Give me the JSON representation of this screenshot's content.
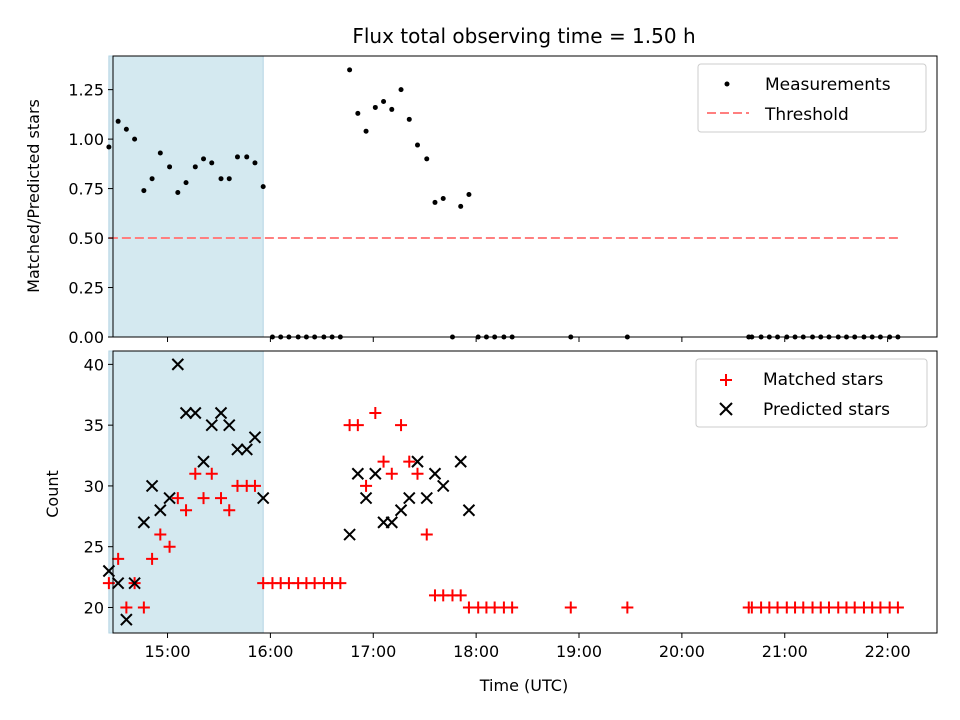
{
  "chart_data": [
    {
      "type": "scatter",
      "title": "Flux total observing time = 1.50 h",
      "xlabel": "",
      "ylabel": "Matched/Predicted stars",
      "ylim": [
        0,
        1.42
      ],
      "yticks": [
        "0.00",
        "0.25",
        "0.50",
        "0.75",
        "1.00",
        "1.25"
      ],
      "yticks_values": [
        0,
        0.25,
        0.5,
        0.75,
        1.0,
        1.25
      ],
      "xlim_hours": [
        14.47,
        22.48
      ],
      "x_tick_values": [
        15,
        16,
        17,
        18,
        19,
        20,
        21,
        22
      ],
      "shaded_region_hours": [
        14.43,
        15.93
      ],
      "shaded_color": "#d4e9f0",
      "legend_position": "top-right",
      "grid": false,
      "series": [
        {
          "name": "Measurements",
          "marker": "dot",
          "color": "#000000",
          "x_hours": [
            14.43,
            14.52,
            14.6,
            14.68,
            14.77,
            14.85,
            14.93,
            15.02,
            15.1,
            15.18,
            15.27,
            15.35,
            15.43,
            15.52,
            15.6,
            15.68,
            15.77,
            15.85,
            15.93,
            16.02,
            16.1,
            16.18,
            16.27,
            16.35,
            16.43,
            16.52,
            16.6,
            16.68,
            16.77,
            16.85,
            16.93,
            17.02,
            17.1,
            17.18,
            17.27,
            17.35,
            17.43,
            17.52,
            17.6,
            17.68,
            17.77,
            17.85,
            17.93,
            18.02,
            18.1,
            18.18,
            18.27,
            18.35,
            18.92,
            19.47,
            20.65,
            20.68,
            20.77,
            20.85,
            20.93,
            21.02,
            21.1,
            21.18,
            21.27,
            21.35,
            21.43,
            21.52,
            21.6,
            21.68,
            21.77,
            21.85,
            21.93,
            22.02,
            22.1
          ],
          "y": [
            0.96,
            1.09,
            1.05,
            1.0,
            0.74,
            0.8,
            0.93,
            0.86,
            0.73,
            0.78,
            0.86,
            0.9,
            0.88,
            0.8,
            0.8,
            0.91,
            0.91,
            0.88,
            0.76,
            0,
            0,
            0,
            0,
            0,
            0,
            0,
            0,
            0,
            1.35,
            1.13,
            1.04,
            1.16,
            1.19,
            1.15,
            1.25,
            1.1,
            0.97,
            0.9,
            0.68,
            0.7,
            0,
            0.66,
            0.72,
            0,
            0,
            0,
            0,
            0,
            0,
            0,
            0,
            0,
            0,
            0,
            0,
            0,
            0,
            0,
            0,
            0,
            0,
            0,
            0,
            0,
            0,
            0,
            0,
            0,
            0
          ]
        },
        {
          "name": "Threshold",
          "marker": "dashed-line",
          "color": "#ff7f7f",
          "x_hours": [
            14.43,
            22.1
          ],
          "y": [
            0.5,
            0.5
          ]
        }
      ]
    },
    {
      "type": "scatter",
      "title": "",
      "xlabel": "Time (UTC)",
      "ylabel": "Count",
      "ylim": [
        17.9,
        41.1
      ],
      "yticks": [
        "20",
        "25",
        "30",
        "35",
        "40"
      ],
      "yticks_values": [
        20,
        25,
        30,
        35,
        40
      ],
      "xlim_hours": [
        14.47,
        22.48
      ],
      "x_tick_values": [
        15,
        16,
        17,
        18,
        19,
        20,
        21,
        22
      ],
      "xticks": [
        "15:00",
        "16:00",
        "17:00",
        "18:00",
        "19:00",
        "20:00",
        "21:00",
        "22:00"
      ],
      "shaded_region_hours": [
        14.43,
        15.93
      ],
      "shaded_color": "#d4e9f0",
      "legend_position": "top-right",
      "grid": false,
      "series": [
        {
          "name": "Matched stars",
          "marker": "plus",
          "color": "#ff0000",
          "x_hours": [
            14.43,
            14.52,
            14.6,
            14.68,
            14.77,
            14.85,
            14.93,
            15.02,
            15.1,
            15.18,
            15.27,
            15.35,
            15.43,
            15.52,
            15.6,
            15.68,
            15.77,
            15.85,
            15.93,
            16.02,
            16.1,
            16.18,
            16.27,
            16.35,
            16.43,
            16.52,
            16.6,
            16.68,
            16.77,
            16.85,
            16.93,
            17.02,
            17.1,
            17.18,
            17.27,
            17.35,
            17.43,
            17.52,
            17.6,
            17.68,
            17.77,
            17.85,
            17.93,
            18.02,
            18.1,
            18.18,
            18.27,
            18.35,
            18.92,
            19.47,
            20.65,
            20.68,
            20.77,
            20.85,
            20.93,
            21.02,
            21.1,
            21.18,
            21.27,
            21.35,
            21.43,
            21.52,
            21.6,
            21.68,
            21.77,
            21.85,
            21.93,
            22.02,
            22.1
          ],
          "y": [
            22,
            24,
            20,
            22,
            20,
            24,
            26,
            25,
            29,
            28,
            31,
            29,
            31,
            29,
            28,
            30,
            30,
            30,
            22,
            22,
            22,
            22,
            22,
            22,
            22,
            22,
            22,
            22,
            35,
            35,
            30,
            36,
            32,
            31,
            35,
            32,
            31,
            26,
            21,
            21,
            21,
            21,
            20,
            20,
            20,
            20,
            20,
            20,
            20,
            20,
            20,
            20,
            20,
            20,
            20,
            20,
            20,
            20,
            20,
            20,
            20,
            20,
            20,
            20,
            20,
            20,
            20,
            20,
            20
          ]
        },
        {
          "name": "Predicted stars",
          "marker": "x",
          "color": "#000000",
          "x_hours": [
            14.43,
            14.52,
            14.6,
            14.68,
            14.77,
            14.85,
            14.93,
            15.02,
            15.1,
            15.18,
            15.27,
            15.35,
            15.43,
            15.52,
            15.6,
            15.68,
            15.77,
            15.85,
            15.93,
            16.77,
            16.85,
            16.93,
            17.02,
            17.1,
            17.18,
            17.27,
            17.35,
            17.43,
            17.52,
            17.6,
            17.68,
            17.85,
            17.93
          ],
          "y": [
            23,
            22,
            19,
            22,
            27,
            30,
            28,
            29,
            40,
            36,
            36,
            32,
            35,
            36,
            35,
            33,
            33,
            34,
            29,
            26,
            31,
            29,
            31,
            27,
            27,
            28,
            29,
            32,
            29,
            31,
            30,
            32,
            28
          ]
        }
      ]
    }
  ]
}
